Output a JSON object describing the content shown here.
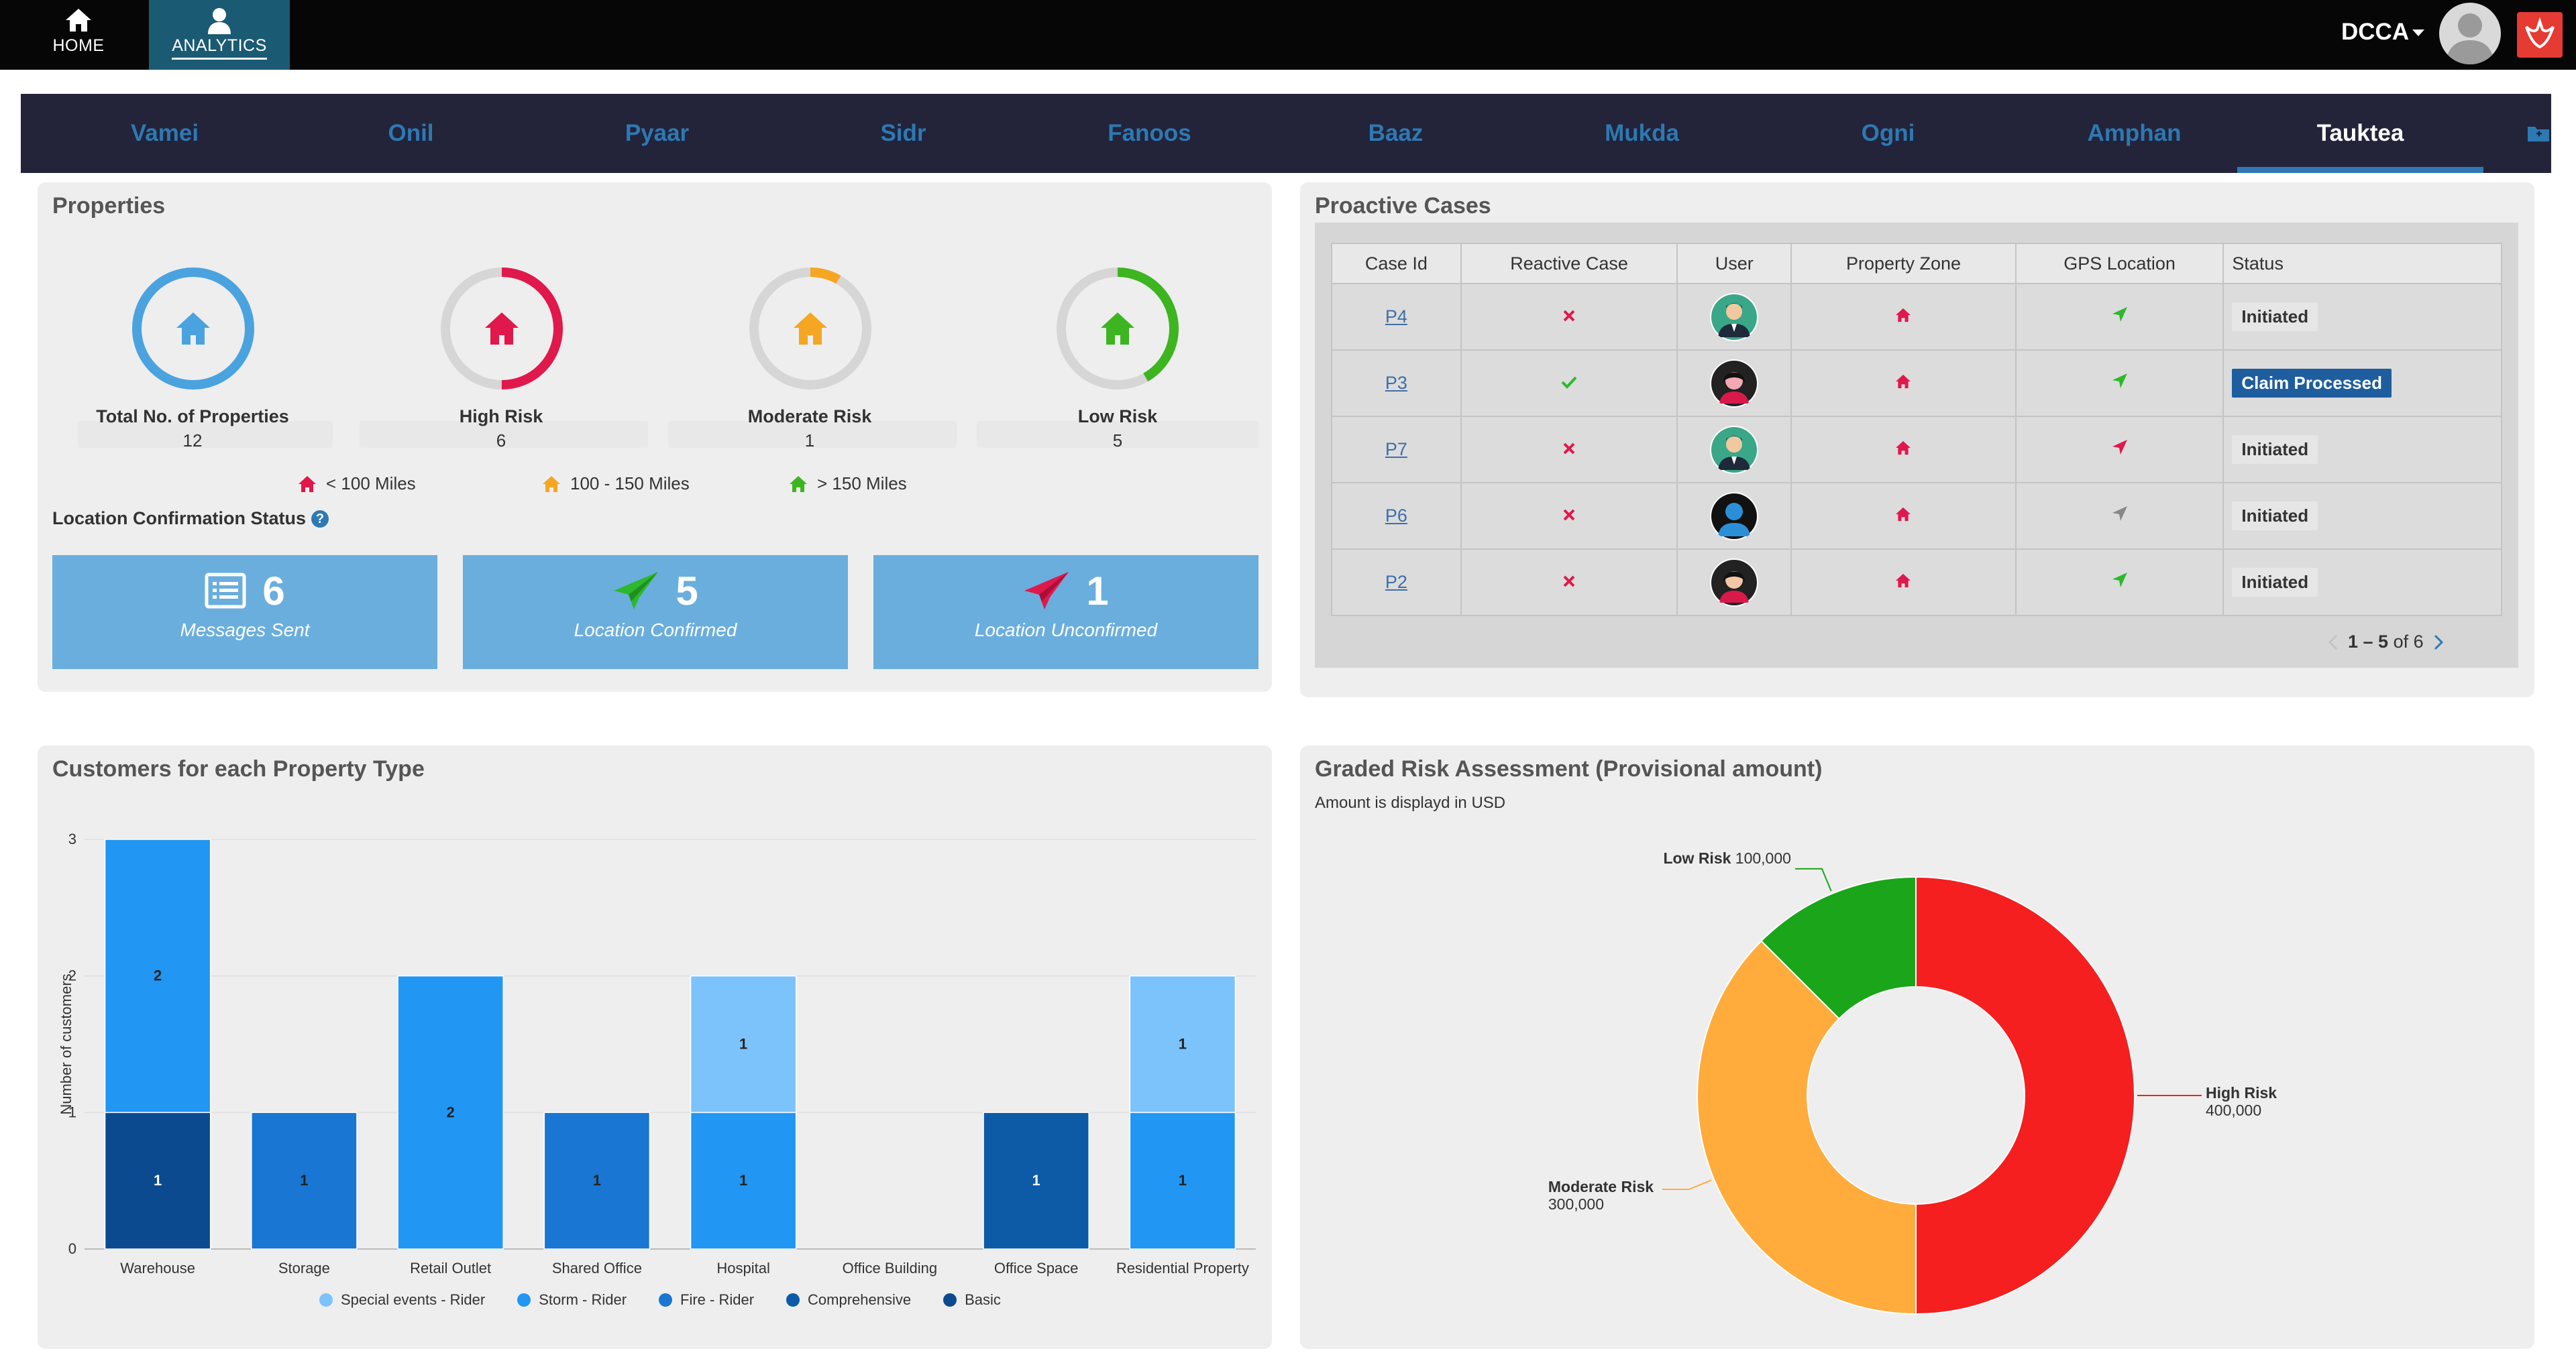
{
  "nav": {
    "home_label": "HOME",
    "analytics_label": "ANALYTICS",
    "user_name": "DCCA"
  },
  "tabs": [
    "Vamei",
    "Onil",
    "Pyaar",
    "Sidr",
    "Fanoos",
    "Baaz",
    "Mukda",
    "Ogni",
    "Amphan",
    "Tauktea"
  ],
  "active_tab": "Tauktea",
  "properties": {
    "title": "Properties",
    "cards": [
      {
        "name": "Total No. of Properties",
        "count": "12",
        "color": "#4aa3df",
        "fraction": 1.0
      },
      {
        "name": "High Risk",
        "count": "6",
        "color": "#e0184c",
        "fraction": 0.5
      },
      {
        "name": "Moderate Risk",
        "count": "1",
        "color": "#f5a623",
        "fraction": 0.083
      },
      {
        "name": "Low Risk",
        "count": "5",
        "color": "#3cb521",
        "fraction": 0.417
      }
    ],
    "distance_legend": [
      "< 100 Miles",
      "100 - 150 Miles",
      "> 150 Miles"
    ],
    "location_title": "Location Confirmation Status",
    "stats": [
      {
        "value": "6",
        "label": "Messages Sent"
      },
      {
        "value": "5",
        "label": "Location Confirmed"
      },
      {
        "value": "1",
        "label": "Location Unconfirmed"
      }
    ]
  },
  "cases": {
    "title": "Proactive Cases",
    "columns": [
      "Case Id",
      "Reactive Case",
      "User",
      "Property Zone",
      "GPS Location",
      "Status"
    ],
    "rows": [
      {
        "id": "P4",
        "reactive": false,
        "gps": "confirmed",
        "status": "Initiated"
      },
      {
        "id": "P3",
        "reactive": true,
        "gps": "confirmed",
        "status": "Claim Processed"
      },
      {
        "id": "P7",
        "reactive": false,
        "gps": "unconfirmed",
        "status": "Initiated"
      },
      {
        "id": "P6",
        "reactive": false,
        "gps": "unknown",
        "status": "Initiated"
      },
      {
        "id": "P2",
        "reactive": false,
        "gps": "confirmed",
        "status": "Initiated"
      }
    ],
    "pager": {
      "range": "1 – 5",
      "of": "of 6"
    }
  },
  "bar_panel_title": "Customers for each Property Type",
  "pie_panel": {
    "title": "Graded Risk Assessment (Provisional amount)",
    "note": "Amount is displayd in USD"
  },
  "chart_data": [
    {
      "type": "bar",
      "stacked": true,
      "categories": [
        "Warehouse",
        "Storage",
        "Retail Outlet",
        "Shared Office",
        "Hospital",
        "Office Building",
        "Office Space",
        "Residential Property"
      ],
      "series": [
        {
          "name": "Special events - Rider",
          "color": "#7cc2fb",
          "values": [
            0,
            0,
            0,
            0,
            1,
            0,
            0,
            1
          ]
        },
        {
          "name": "Storm - Rider",
          "color": "#2196f3",
          "values": [
            2,
            0,
            2,
            0,
            1,
            0,
            0,
            1
          ]
        },
        {
          "name": "Fire - Rider",
          "color": "#1976d2",
          "values": [
            0,
            1,
            0,
            1,
            0,
            0,
            0,
            0
          ]
        },
        {
          "name": "Comprehensive",
          "color": "#0d5aa7",
          "values": [
            0,
            0,
            0,
            0,
            0,
            0,
            1,
            0
          ]
        },
        {
          "name": "Basic",
          "color": "#0b4a8f",
          "values": [
            1,
            0,
            0,
            0,
            0,
            0,
            0,
            0
          ]
        }
      ],
      "ylabel": "Number of customers",
      "ylim": [
        0,
        3
      ],
      "yticks": [
        0,
        1,
        2,
        3
      ],
      "grid": true,
      "legend": "bottom"
    },
    {
      "type": "pie",
      "donut": true,
      "slices": [
        {
          "label": "High Risk",
          "value": 400000,
          "value_text": "400,000",
          "color": "#f51f1f"
        },
        {
          "label": "Moderate Risk",
          "value": 300000,
          "value_text": "300,000",
          "color": "#ffac3d"
        },
        {
          "label": "Low Risk",
          "value": 100000,
          "value_text": "100,000",
          "color": "#1aa51a"
        }
      ]
    }
  ]
}
